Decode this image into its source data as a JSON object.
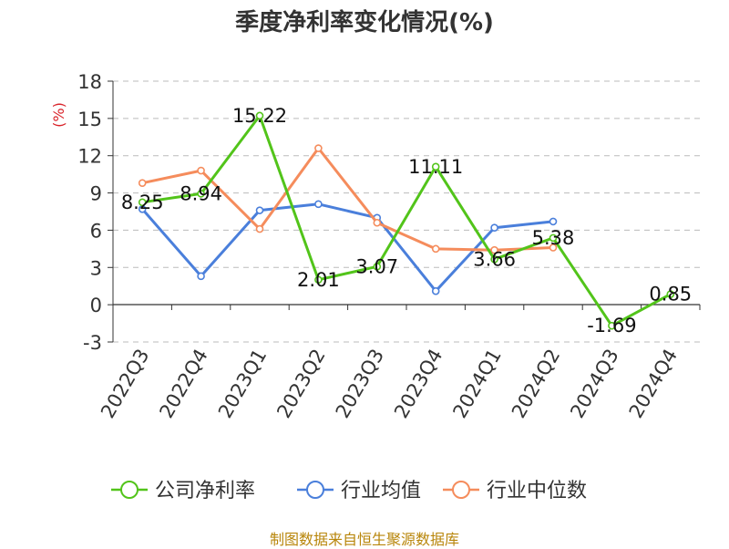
{
  "chart_data": {
    "type": "line",
    "title": "季度净利率变化情况(%)",
    "ylabel": "(%)",
    "xlabel": "",
    "categories": [
      "2022Q3",
      "2022Q4",
      "2023Q1",
      "2023Q2",
      "2023Q3",
      "2023Q4",
      "2024Q1",
      "2024Q2",
      "2024Q3",
      "2024Q4"
    ],
    "ylim": [
      -3,
      18
    ],
    "yticks": [
      -3,
      0,
      3,
      6,
      9,
      12,
      15,
      18
    ],
    "grid": true,
    "legend_position": "bottom",
    "series": [
      {
        "name": "公司净利率",
        "color": "#52c41a",
        "values": [
          8.25,
          8.94,
          15.22,
          2.01,
          3.07,
          11.11,
          3.66,
          5.38,
          -1.69,
          0.85
        ],
        "labels": [
          "8.25",
          "8.94",
          "15.22",
          "2.01",
          "3.07",
          "11.11",
          "3.66",
          "5.38",
          "-1.69",
          "0.85"
        ]
      },
      {
        "name": "行业均值",
        "color": "#4a7fdb",
        "values": [
          7.7,
          2.3,
          7.6,
          8.1,
          7.0,
          1.1,
          6.2,
          6.7,
          null,
          null
        ]
      },
      {
        "name": "行业中位数",
        "color": "#f58c5c",
        "values": [
          9.8,
          10.8,
          6.1,
          12.6,
          6.6,
          4.5,
          4.4,
          4.6,
          null,
          null
        ]
      }
    ]
  },
  "footer": {
    "source": "制图数据来自恒生聚源数据库"
  }
}
